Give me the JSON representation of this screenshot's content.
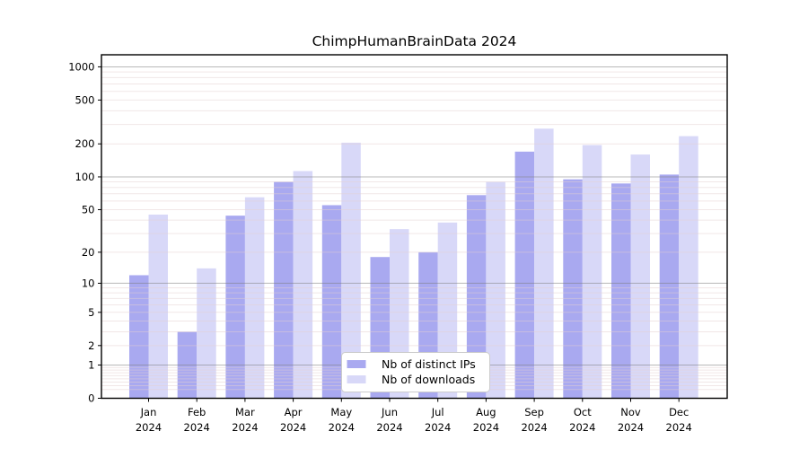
{
  "chart_data": {
    "type": "bar",
    "title": "ChimpHumanBrainData 2024",
    "year_label": "2024",
    "categories": [
      "Jan",
      "Feb",
      "Mar",
      "Apr",
      "May",
      "Jun",
      "Jul",
      "Aug",
      "Sep",
      "Oct",
      "Nov",
      "Dec"
    ],
    "series": [
      {
        "name": "Nb of distinct IPs",
        "color": "#a9a9f0",
        "values": [
          12,
          3,
          44,
          90,
          55,
          18,
          20,
          68,
          170,
          95,
          87,
          105
        ]
      },
      {
        "name": "Nb of downloads",
        "color": "#d8d8f8",
        "values": [
          45,
          14,
          65,
          113,
          205,
          33,
          38,
          90,
          275,
          195,
          160,
          235
        ]
      }
    ],
    "y_tick_labels": [
      "0",
      "1",
      "2",
      "5",
      "10",
      "20",
      "50",
      "100",
      "200",
      "500",
      "1000"
    ],
    "y_scale": "log1p",
    "ylim": [
      0,
      1300
    ],
    "grid": true,
    "legend_position": "lower-center-inside",
    "colors": {
      "background": "#ffffff",
      "axis": "#000000",
      "major_grid": "#808080",
      "minor_grid": "#e3cfcf",
      "legend_border": "#cccccc",
      "legend_background": "#ffffff"
    }
  }
}
